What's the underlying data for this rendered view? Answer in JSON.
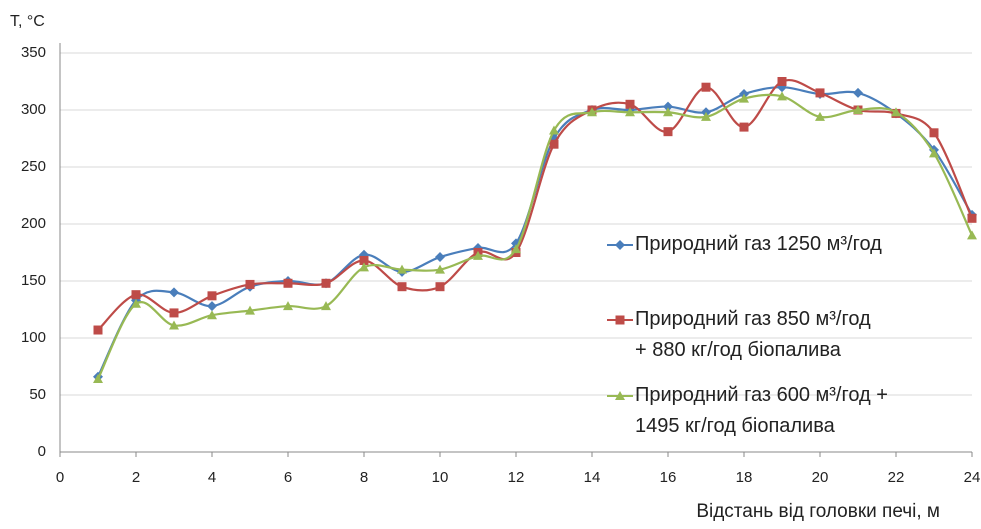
{
  "chart_data": {
    "type": "line",
    "ylabel": "Т, °С",
    "xlabel": "Відстань від головки печі, м",
    "x": [
      1,
      2,
      3,
      4,
      5,
      6,
      7,
      8,
      9,
      10,
      11,
      12,
      13,
      14,
      15,
      16,
      17,
      18,
      19,
      20,
      21,
      22,
      23,
      24
    ],
    "series": [
      {
        "name": "Природний газ 1250 м³/год",
        "color": "#4a7ebb",
        "marker": "diamond",
        "values": [
          66,
          133,
          140,
          128,
          145,
          150,
          148,
          173,
          158,
          171,
          179,
          183,
          275,
          300,
          300,
          303,
          298,
          314,
          320,
          314,
          315,
          297,
          265,
          208
        ]
      },
      {
        "name": "Природний газ 850 м³/год\n+ 880 кг/год біопалива",
        "color": "#be4b48",
        "marker": "square",
        "values": [
          107,
          138,
          122,
          137,
          147,
          148,
          148,
          168,
          145,
          145,
          175,
          175,
          270,
          300,
          305,
          281,
          320,
          285,
          325,
          315,
          300,
          297,
          280,
          205
        ]
      },
      {
        "name": "Природний газ 600 м³/год +\n1495 кг/год біопалива",
        "color": "#98b954",
        "marker": "triangle",
        "values": [
          64,
          130,
          111,
          120,
          124,
          128,
          128,
          162,
          160,
          160,
          172,
          178,
          282,
          298,
          298,
          298,
          294,
          310,
          312,
          294,
          300,
          298,
          262,
          190
        ]
      }
    ],
    "xlim": [
      0,
      24
    ],
    "xticks": [
      0,
      2,
      4,
      6,
      8,
      10,
      12,
      14,
      16,
      18,
      20,
      22,
      24
    ],
    "ylim": [
      0,
      350
    ],
    "yticks": [
      0,
      50,
      100,
      150,
      200,
      250,
      300,
      350
    ],
    "grid": true,
    "legend": "right"
  }
}
